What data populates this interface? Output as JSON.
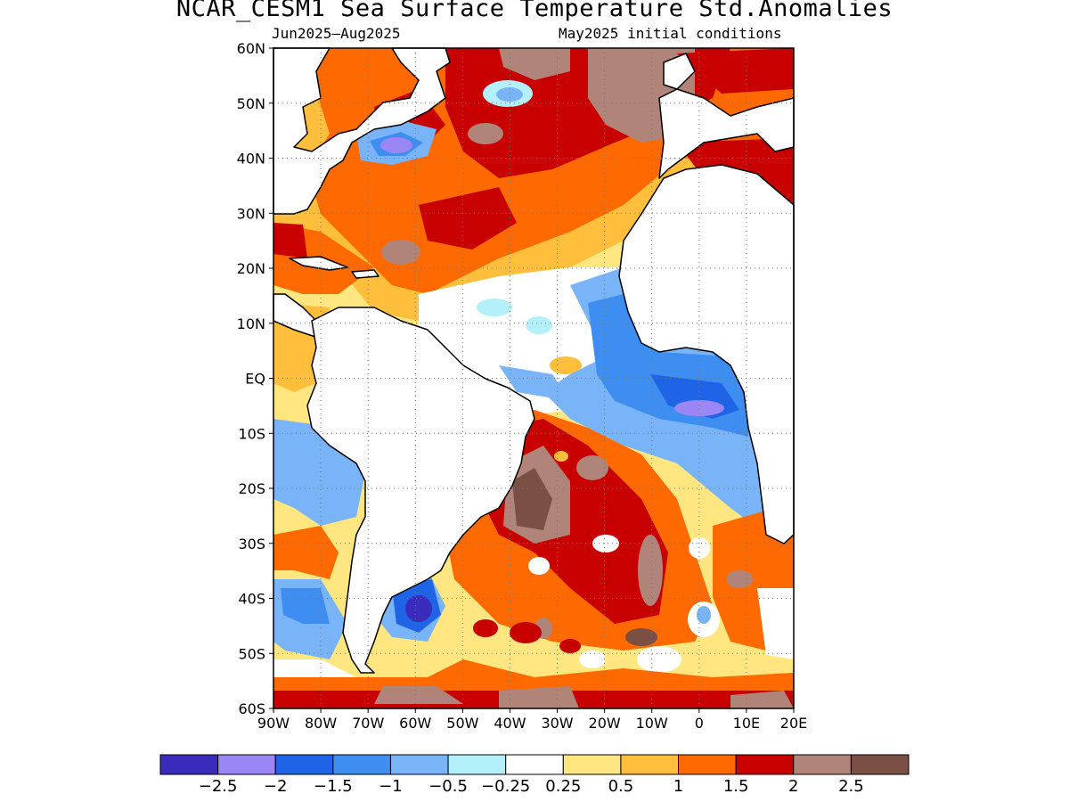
{
  "title": "NCAR_CESM1 Sea Surface Temperature Std.Anomalies",
  "subtitle_period": "Jun2025–Aug2025",
  "subtitle_init": "May2025 initial conditions",
  "map": {
    "region": "Atlantic Ocean",
    "lon_range": [
      -90,
      20
    ],
    "lat_range": [
      -60,
      60
    ],
    "lat_ticks": [
      {
        "value": 60,
        "label": "60N"
      },
      {
        "value": 50,
        "label": "50N"
      },
      {
        "value": 40,
        "label": "40N"
      },
      {
        "value": 30,
        "label": "30N"
      },
      {
        "value": 20,
        "label": "20N"
      },
      {
        "value": 10,
        "label": "10N"
      },
      {
        "value": 0,
        "label": "EQ"
      },
      {
        "value": -10,
        "label": "10S"
      },
      {
        "value": -20,
        "label": "20S"
      },
      {
        "value": -30,
        "label": "30S"
      },
      {
        "value": -40,
        "label": "40S"
      },
      {
        "value": -50,
        "label": "50S"
      },
      {
        "value": -60,
        "label": "60S"
      }
    ],
    "lon_ticks": [
      {
        "value": -90,
        "label": "90W"
      },
      {
        "value": -80,
        "label": "80W"
      },
      {
        "value": -70,
        "label": "70W"
      },
      {
        "value": -60,
        "label": "60W"
      },
      {
        "value": -50,
        "label": "50W"
      },
      {
        "value": -40,
        "label": "40W"
      },
      {
        "value": -30,
        "label": "30W"
      },
      {
        "value": -20,
        "label": "20W"
      },
      {
        "value": -10,
        "label": "10W"
      },
      {
        "value": 0,
        "label": "0"
      },
      {
        "value": 10,
        "label": "10E"
      },
      {
        "value": 20,
        "label": "20E"
      }
    ],
    "grid": "dotted"
  },
  "colorbar": {
    "colors": [
      "#3a2bbd",
      "#9b86f5",
      "#1f63e6",
      "#3d8ef0",
      "#78b4f7",
      "#b4f0fa",
      "#ffffff",
      "#ffe680",
      "#ffbe3c",
      "#ff6a00",
      "#c80000",
      "#b08479",
      "#7a4f44"
    ],
    "labels": [
      "−2.5",
      "−2",
      "−1.5",
      "−1",
      "−0.5",
      "−0.25",
      "0.25",
      "0.5",
      "1",
      "1.5",
      "2",
      "2.5"
    ]
  }
}
